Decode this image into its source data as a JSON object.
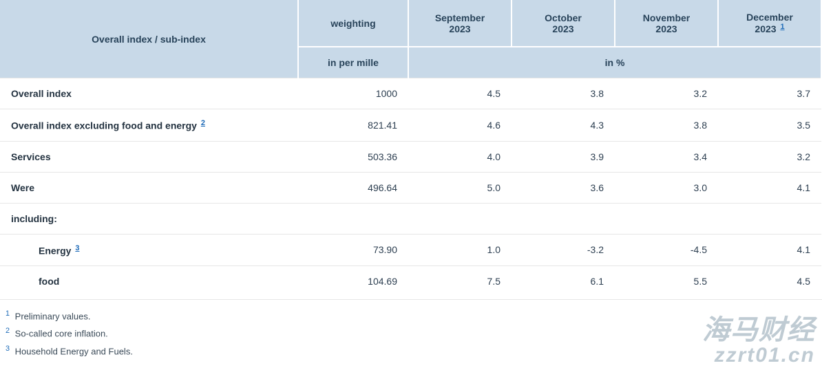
{
  "table": {
    "type": "table",
    "background_color": "#ffffff",
    "header_bg": "#c8d9e8",
    "header_text_color": "#28435a",
    "body_text_color": "#2c3e50",
    "grid_color": "#e6e6e6",
    "header_border_color": "#ffffff",
    "link_color": "#1e6bb8",
    "label_fontsize": 14,
    "row_label_header": "Overall index / sub-index",
    "weighting_header": "weighting",
    "months": [
      {
        "line1": "September",
        "line2": "2023",
        "footnote": ""
      },
      {
        "line1": "October",
        "line2": "2023",
        "footnote": ""
      },
      {
        "line1": "November",
        "line2": "2023",
        "footnote": ""
      },
      {
        "line1": "December",
        "line2": "2023",
        "footnote": "1"
      }
    ],
    "unit_weighting": "in per mille",
    "unit_months": "in %",
    "rows": [
      {
        "label": "Overall index",
        "indent": false,
        "footnote": "",
        "weighting": "1000",
        "v": [
          "4.5",
          "3.8",
          "3.2",
          "3.7"
        ]
      },
      {
        "label": "Overall index excluding food and energy",
        "indent": false,
        "footnote": "2",
        "weighting": "821.41",
        "v": [
          "4.6",
          "4.3",
          "3.8",
          "3.5"
        ]
      },
      {
        "label": "Services",
        "indent": false,
        "footnote": "",
        "weighting": "503.36",
        "v": [
          "4.0",
          "3.9",
          "3.4",
          "3.2"
        ]
      },
      {
        "label": "Were",
        "indent": false,
        "footnote": "",
        "weighting": "496.64",
        "v": [
          "5.0",
          "3.6",
          "3.0",
          "4.1"
        ]
      },
      {
        "label": "including:",
        "indent": false,
        "footnote": "",
        "section": true
      },
      {
        "label": "Energy",
        "indent": true,
        "footnote": "3",
        "weighting": "73.90",
        "v": [
          "1.0",
          "-3.2",
          "-4.5",
          "4.1"
        ]
      },
      {
        "label": "food",
        "indent": true,
        "footnote": "",
        "weighting": "104.69",
        "v": [
          "7.5",
          "6.1",
          "5.5",
          "4.5"
        ]
      }
    ],
    "col_widths": {
      "label": "auto",
      "weighting": 160,
      "month": 150
    }
  },
  "footnotes": [
    {
      "n": "1",
      "text": "Preliminary values."
    },
    {
      "n": "2",
      "text": "So-called core inflation."
    },
    {
      "n": "3",
      "text": "Household Energy and Fuels."
    }
  ],
  "watermark": {
    "line1": "海马财经",
    "line2": "zzrt01.cn",
    "color": "rgba(138,160,175,0.55)"
  }
}
